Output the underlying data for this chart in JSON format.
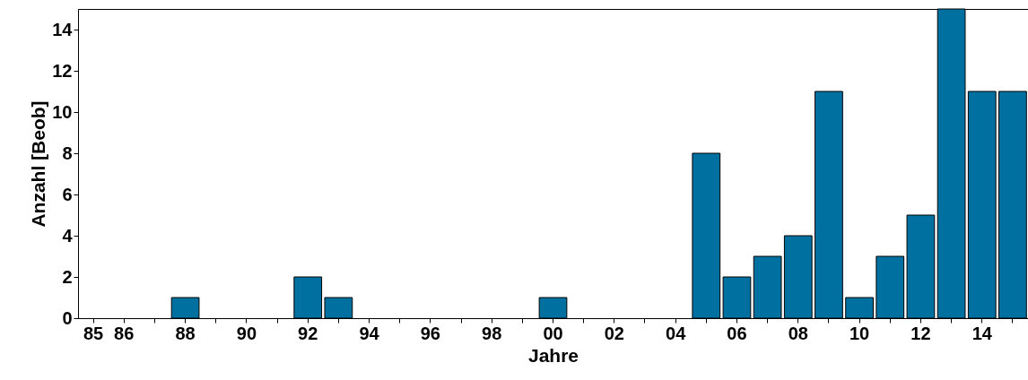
{
  "chart_data": {
    "type": "bar",
    "xlabel": "Jahre",
    "ylabel": "Anzahl [Beob]",
    "categories": [
      "85",
      "86",
      null,
      "88",
      null,
      "90",
      null,
      "92",
      null,
      "94",
      null,
      "96",
      null,
      "98",
      null,
      "00",
      null,
      "02",
      null,
      "04",
      null,
      "06",
      null,
      "08",
      null,
      "10",
      null,
      "12",
      null,
      "14",
      null
    ],
    "values": [
      0,
      0,
      0,
      1,
      0,
      0,
      0,
      2,
      1,
      0,
      0,
      0,
      0,
      0,
      0,
      1,
      0,
      0,
      0,
      0,
      8,
      2,
      3,
      4,
      11,
      1,
      3,
      5,
      15,
      11,
      11
    ],
    "color": "#0070a0",
    "ylim": [
      0,
      15
    ],
    "yticks": [
      0,
      2,
      4,
      6,
      8,
      10,
      12,
      14
    ],
    "grid": false
  }
}
